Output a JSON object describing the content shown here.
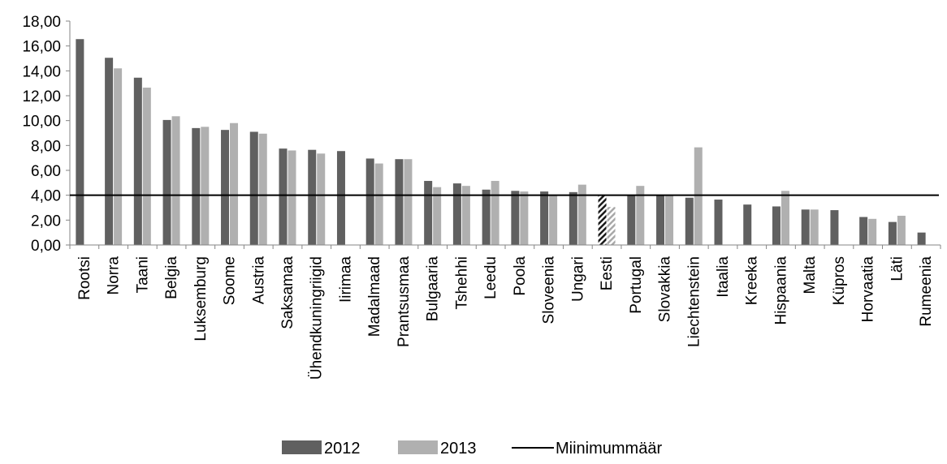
{
  "chart_data": {
    "type": "bar",
    "title": "",
    "xlabel": "",
    "ylabel": "",
    "ylim": [
      0,
      18
    ],
    "yticks": [
      "0,00",
      "2,00",
      "4,00",
      "6,00",
      "8,00",
      "10,00",
      "12,00",
      "14,00",
      "16,00",
      "18,00"
    ],
    "grid": false,
    "legend_position": "bottom",
    "categories": [
      "Rootsi",
      "Norra",
      "Taani",
      "Belgia",
      "Luksemburg",
      "Soome",
      "Austria",
      "Saksamaa",
      "Ühendkuningriigid",
      "Iirimaa",
      "Madalmaad",
      "Prantsusmaa",
      "Bulgaaria",
      "Tshehhi",
      "Leedu",
      "Poola",
      "Sloveenia",
      "Ungari",
      "Eesti",
      "Portugal",
      "Slovakkia",
      "Liechtenstein",
      "Itaalia",
      "Kreeka",
      "Hispaania",
      "Malta",
      "Küpros",
      "Horvaatia",
      "Läti",
      "Rumeenia"
    ],
    "series": [
      {
        "name": "2012",
        "color": "#606060",
        "values": [
          16.55,
          15.05,
          13.45,
          10.05,
          9.4,
          9.25,
          9.1,
          7.75,
          7.65,
          7.55,
          6.95,
          6.9,
          5.15,
          4.95,
          4.45,
          4.35,
          4.3,
          4.25,
          4.0,
          4.0,
          4.0,
          3.8,
          3.65,
          3.25,
          3.1,
          2.85,
          2.8,
          2.25,
          1.85,
          1.0
        ]
      },
      {
        "name": "2013",
        "color": "#b0b0b0",
        "values": [
          null,
          14.2,
          12.65,
          10.35,
          9.5,
          9.8,
          8.95,
          7.6,
          7.35,
          null,
          6.55,
          6.9,
          4.65,
          4.75,
          5.15,
          4.3,
          3.95,
          4.85,
          3.05,
          4.75,
          3.95,
          7.85,
          null,
          null,
          4.35,
          2.85,
          null,
          2.1,
          2.35,
          null
        ]
      }
    ],
    "reference_line": {
      "name": "Miinimummäär",
      "value": 4.0,
      "color": "#000000"
    },
    "highlight_category": "Eesti",
    "legend": [
      "2012",
      "2013",
      "Miinimummäär"
    ]
  }
}
